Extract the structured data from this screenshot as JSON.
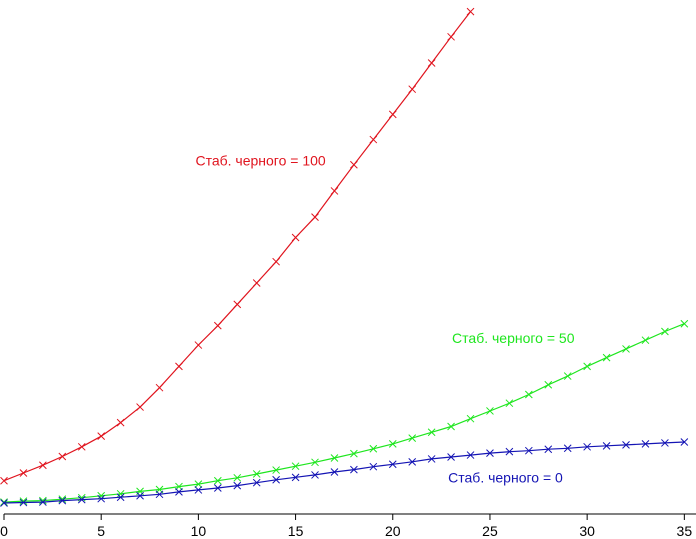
{
  "chart_data": {
    "type": "line",
    "xlim": [
      0,
      35.6
    ],
    "ylim": [
      0,
      52
    ],
    "x_ticks": [
      0,
      5,
      10,
      15,
      20,
      25,
      30,
      35
    ],
    "x_tick_labels": [
      "0",
      "5",
      "10",
      "15",
      "20",
      "25",
      "30",
      "35"
    ],
    "grid": false,
    "title": "",
    "xlabel": "",
    "ylabel": "",
    "series": [
      {
        "name": "Стаб. черного = 100",
        "color": "#e0141e",
        "x": [
          0,
          1,
          2,
          3,
          4,
          5,
          6,
          7,
          8,
          9,
          10,
          11,
          12,
          13,
          14,
          15,
          16,
          17,
          18,
          19,
          20,
          21,
          22,
          23,
          24
        ],
        "y": [
          2.4,
          3.2,
          4.0,
          4.9,
          5.9,
          7.0,
          8.4,
          10.0,
          12.0,
          14.2,
          16.4,
          18.4,
          20.6,
          22.8,
          25.0,
          27.5,
          29.6,
          32.3,
          35.0,
          37.6,
          40.2,
          42.8,
          45.5,
          48.2,
          50.8
        ]
      },
      {
        "name": "Стаб. черного = 50",
        "color": "#1ee61e",
        "x": [
          0,
          1,
          2,
          3,
          4,
          5,
          6,
          7,
          8,
          9,
          10,
          11,
          12,
          13,
          14,
          15,
          16,
          17,
          18,
          19,
          20,
          21,
          22,
          23,
          24,
          25,
          26,
          27,
          28,
          29,
          30,
          31,
          32,
          33,
          34,
          35
        ],
        "y": [
          0.2,
          0.3,
          0.35,
          0.5,
          0.65,
          0.85,
          1.05,
          1.3,
          1.5,
          1.8,
          2.05,
          2.4,
          2.7,
          3.1,
          3.5,
          3.9,
          4.3,
          4.75,
          5.2,
          5.7,
          6.2,
          6.8,
          7.4,
          8.0,
          8.8,
          9.6,
          10.4,
          11.3,
          12.3,
          13.2,
          14.2,
          15.1,
          16.0,
          16.9,
          17.8,
          18.6
        ]
      },
      {
        "name": "Стаб. черного = 0",
        "color": "#1414b4",
        "x": [
          0,
          1,
          2,
          3,
          4,
          5,
          6,
          7,
          8,
          9,
          10,
          11,
          12,
          13,
          14,
          15,
          16,
          17,
          18,
          19,
          20,
          21,
          22,
          23,
          24,
          25,
          26,
          27,
          28,
          29,
          30,
          31,
          32,
          33,
          34,
          35
        ],
        "y": [
          0.1,
          0.15,
          0.2,
          0.35,
          0.45,
          0.55,
          0.7,
          0.85,
          1.0,
          1.25,
          1.45,
          1.65,
          1.9,
          2.2,
          2.5,
          2.75,
          3.0,
          3.3,
          3.55,
          3.85,
          4.1,
          4.35,
          4.65,
          4.85,
          5.05,
          5.25,
          5.4,
          5.5,
          5.65,
          5.75,
          5.9,
          6.0,
          6.1,
          6.2,
          6.3,
          6.4
        ]
      }
    ],
    "annotations": [
      {
        "text": "Стаб. черного = 100",
        "x": 13.2,
        "y": 34.9,
        "series": 0
      },
      {
        "text": "Стаб. черного = 50",
        "x": 26.2,
        "y": 16.6,
        "series": 1
      },
      {
        "text": "Стаб. черного = 0",
        "x": 25.8,
        "y": 2.2,
        "series": 2
      }
    ]
  }
}
